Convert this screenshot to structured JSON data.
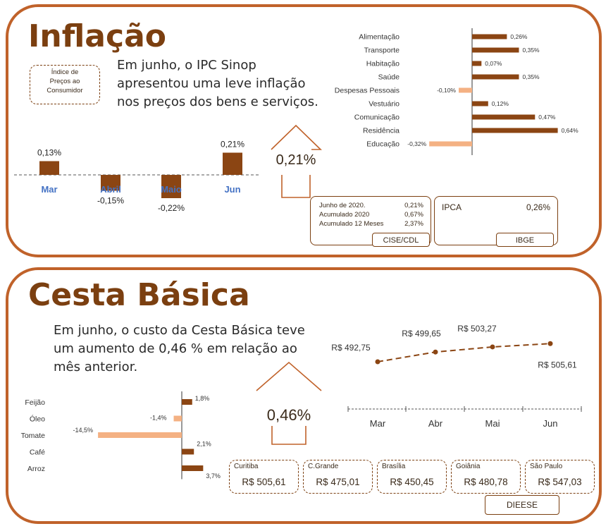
{
  "inflacao": {
    "title": "Inflação",
    "description": "Em junho, o IPC Sinop apresentou uma leve inflação nos preços dos bens e serviços.",
    "description_lines": [
      "Em junho, o IPC Sinop",
      "apresentou uma leve inflação",
      "nos preços dos bens e serviços."
    ],
    "index_box_lines": [
      "Índice de",
      "Preços ao",
      "Consumidor"
    ],
    "headline_value": "0,21%",
    "cise_box": {
      "rows": [
        {
          "label": "Junho de 2020.",
          "value": "0,21%"
        },
        {
          "label": "Acumulado 2020",
          "value": "0,67%"
        },
        {
          "label": "Acumulado 12 Meses",
          "value": "2,37%"
        }
      ],
      "source": "CISE/CDL"
    },
    "ibge_box": {
      "label": "IPCA",
      "value": "0,26%",
      "source": "IBGE"
    }
  },
  "cesta": {
    "title": "Cesta Básica",
    "description": "Em junho, o custo da Cesta Básica teve um aumento de 0,46 % em relação ao mês anterior.",
    "description_lines": [
      "Em junho, o custo da Cesta Básica teve",
      "um aumento de 0,46 %  em relação ao",
      "mês anterior."
    ],
    "headline_value": "0,46%",
    "cities": [
      {
        "name": "Curitiba",
        "value": "R$ 505,61"
      },
      {
        "name": "C.Grande",
        "value": "R$ 475,01"
      },
      {
        "name": "Brasília",
        "value": "R$ 450,45"
      },
      {
        "name": "Goiânia",
        "value": "R$ 480,78"
      },
      {
        "name": "São Paulo",
        "value": "R$ 547,03"
      }
    ],
    "source": "DIEESE"
  },
  "colors": {
    "primary": "#8b4513",
    "light": "#f4b183",
    "border": "#c0622a",
    "axis_label": "#4472c4"
  },
  "chart_data": [
    {
      "type": "bar",
      "categories": [
        "Mar",
        "Abril",
        "Maio",
        "Jun"
      ],
      "values": [
        0.13,
        -0.15,
        -0.22,
        0.21
      ],
      "labels": [
        "0,13%",
        "-0,15%",
        "-0,22%",
        "0,21%"
      ]
    },
    {
      "type": "bar",
      "orientation": "horizontal",
      "categories": [
        "Alimentação",
        "Transporte",
        "Habitação",
        "Saúde",
        "Despesas Pessoais",
        "Vestuário",
        "Comunicação",
        "Residência",
        "Educação"
      ],
      "values": [
        0.26,
        0.35,
        0.07,
        0.35,
        -0.1,
        0.12,
        0.47,
        0.64,
        -0.32
      ],
      "labels": [
        "0,26%",
        "0,35%",
        "0,07%",
        "0,35%",
        "-0,10%",
        "0,12%",
        "0,47%",
        "0,64%",
        "-0,32%"
      ]
    },
    {
      "type": "bar",
      "orientation": "horizontal",
      "categories": [
        "Feijão",
        "Óleo",
        "Tomate",
        "Café",
        "Arroz"
      ],
      "values": [
        1.8,
        -1.4,
        -14.5,
        2.1,
        3.7
      ],
      "labels": [
        "1,8%",
        "-1,4%",
        "-14,5%",
        "2,1%",
        "3,7%"
      ]
    },
    {
      "type": "line",
      "categories": [
        "Mar",
        "Abr",
        "Mai",
        "Jun"
      ],
      "values": [
        492.75,
        499.65,
        503.27,
        505.61
      ],
      "labels": [
        "R$ 492,75",
        "R$ 499,65",
        "R$ 503,27",
        "R$ 505,61"
      ]
    }
  ]
}
